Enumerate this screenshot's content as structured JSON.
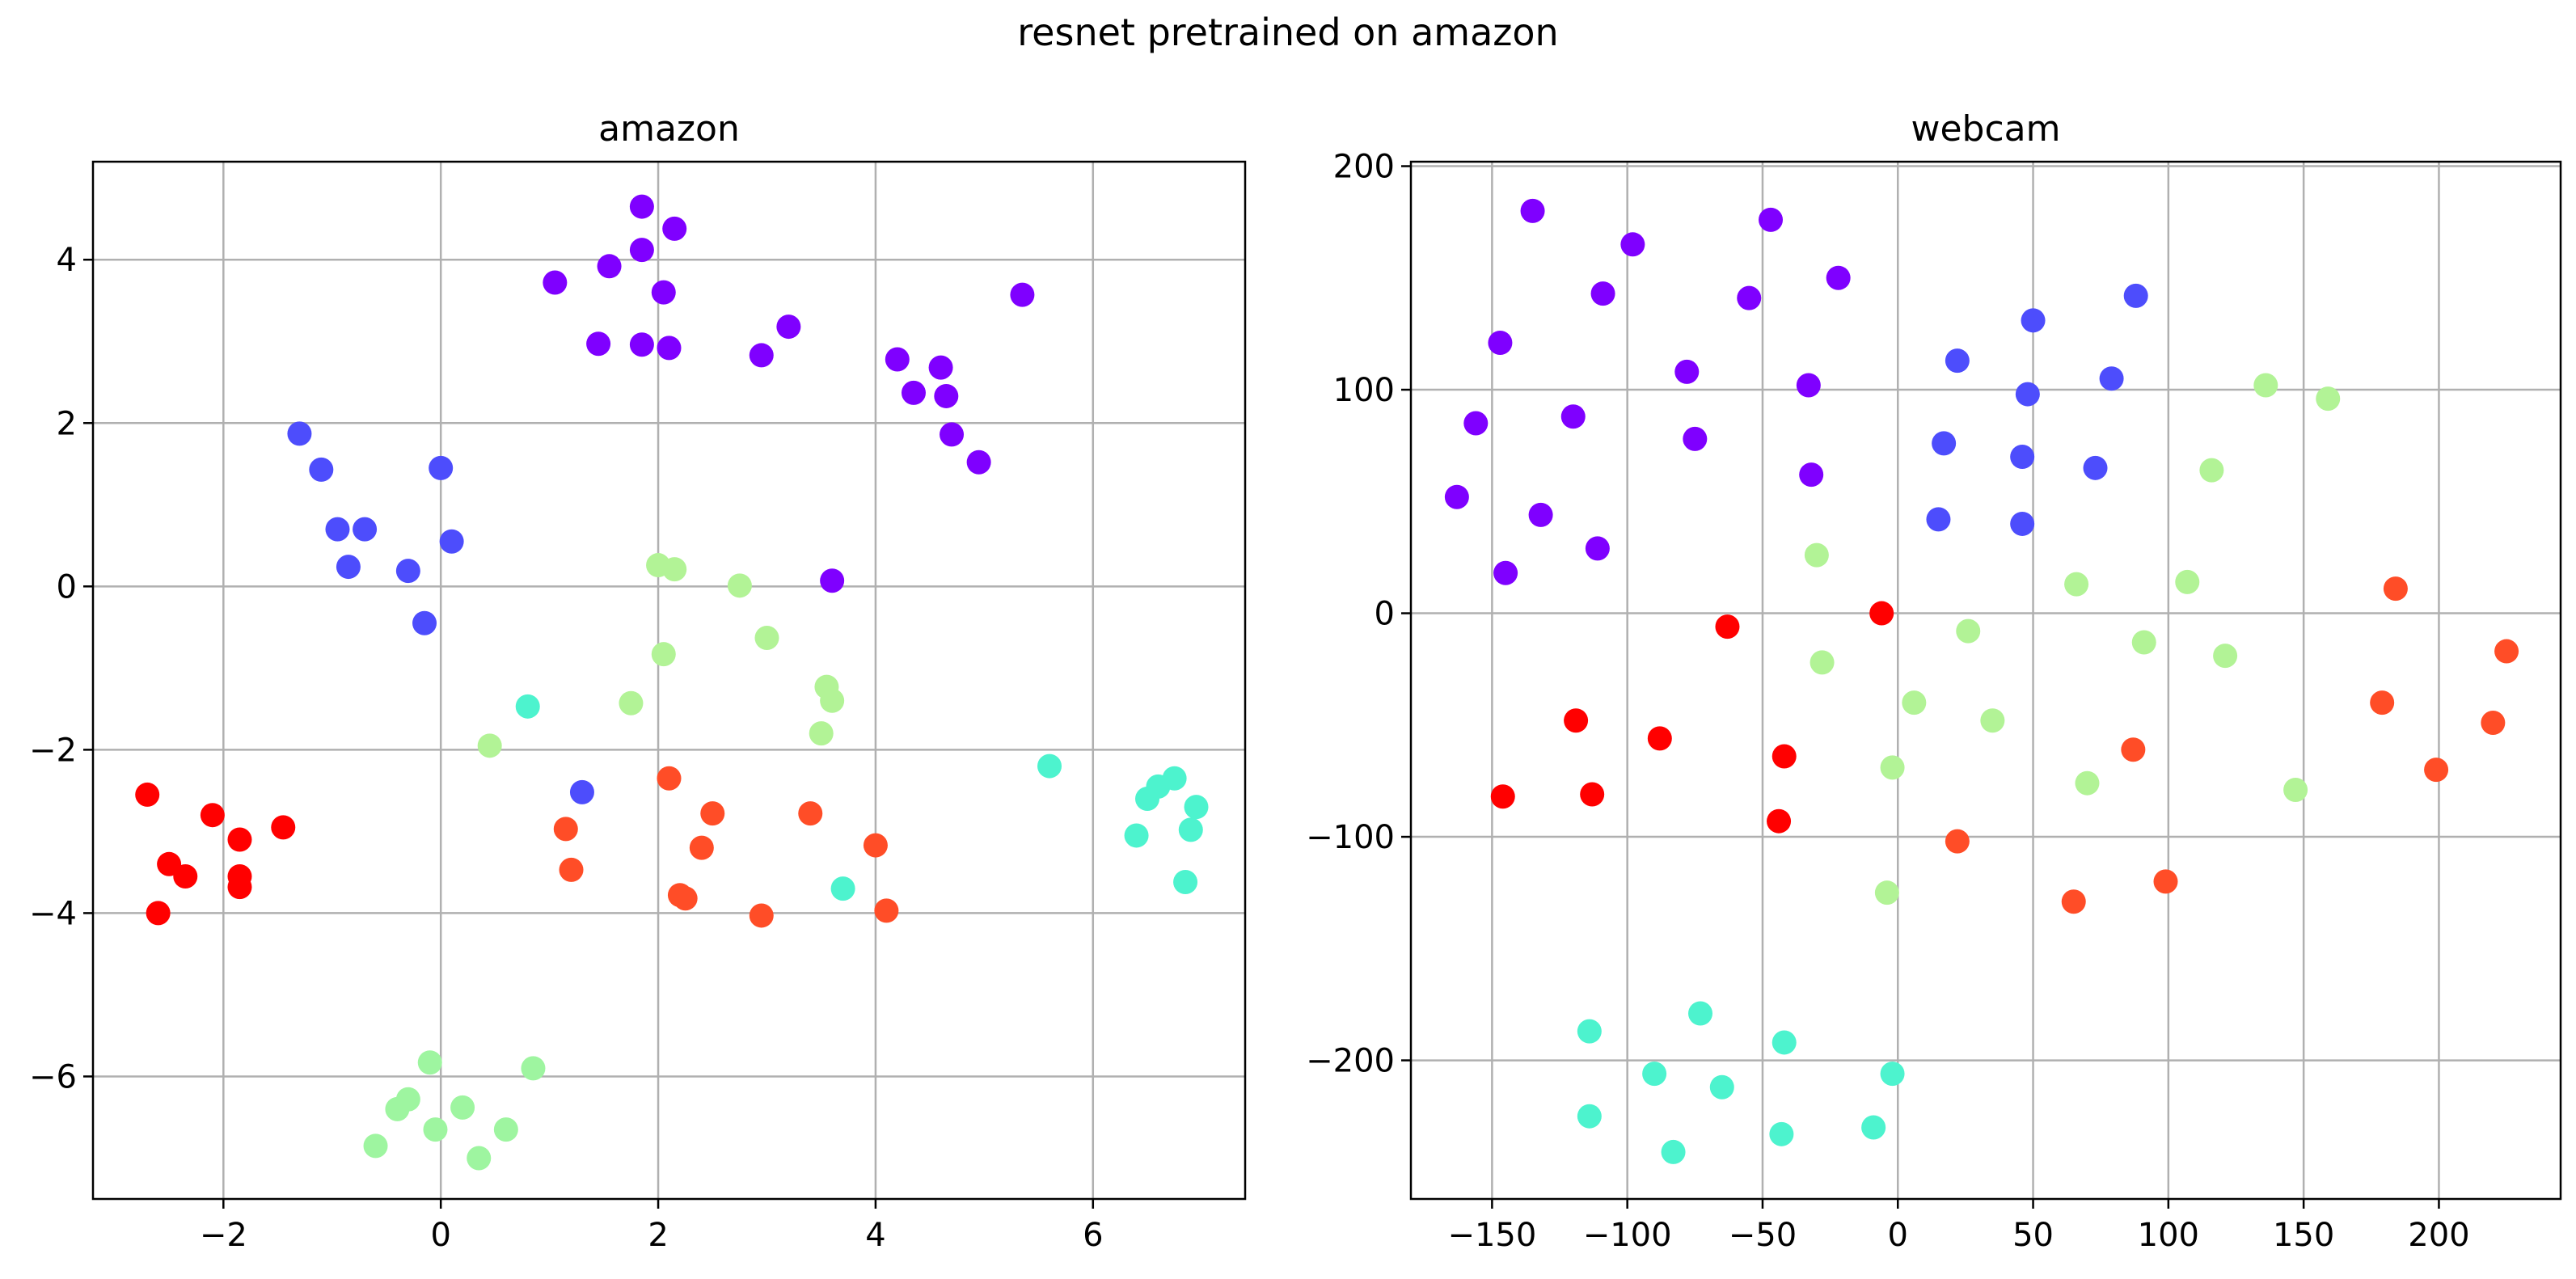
{
  "figure": {
    "title": "resnet pretrained on amazon"
  },
  "colors": {
    "violet": "#7f00ff",
    "blue": "#4d4dfc",
    "cyan": "#4df3ce",
    "lightgreen": "#b2f396",
    "salmon": "#ff4d27",
    "red": "#ff0000",
    "grid": "#b0b0b0"
  },
  "chart_data": [
    {
      "type": "scatter",
      "title": "amazon",
      "xlabel": "",
      "ylabel": "",
      "xlim": [
        -3.2,
        7.4
      ],
      "ylim": [
        -7.5,
        5.2
      ],
      "xticks": [
        -2,
        0,
        2,
        4,
        6
      ],
      "yticks": [
        -6,
        -4,
        -2,
        0,
        2,
        4
      ],
      "xtick_labels": [
        "−2",
        "0",
        "2",
        "4",
        "6"
      ],
      "ytick_labels": [
        "−6",
        "−4",
        "−2",
        "0",
        "2",
        "4"
      ],
      "grid": true,
      "series": [
        {
          "name": "class-violet",
          "color": "#7f00ff",
          "points": [
            [
              1.05,
              3.72
            ],
            [
              1.55,
              3.92
            ],
            [
              1.85,
              4.65
            ],
            [
              2.15,
              4.38
            ],
            [
              1.85,
              4.12
            ],
            [
              2.05,
              3.6
            ],
            [
              1.45,
              2.97
            ],
            [
              1.85,
              2.96
            ],
            [
              2.1,
              2.92
            ],
            [
              2.95,
              2.83
            ],
            [
              3.2,
              3.18
            ],
            [
              4.2,
              2.78
            ],
            [
              4.6,
              2.68
            ],
            [
              4.35,
              2.37
            ],
            [
              4.65,
              2.33
            ],
            [
              4.7,
              1.86
            ],
            [
              4.95,
              1.52
            ],
            [
              5.35,
              3.57
            ],
            [
              3.6,
              0.07
            ]
          ]
        },
        {
          "name": "class-blue",
          "color": "#4d4dfc",
          "points": [
            [
              -1.3,
              1.87
            ],
            [
              -1.1,
              1.43
            ],
            [
              -0.95,
              0.7
            ],
            [
              -0.7,
              0.7
            ],
            [
              -0.85,
              0.24
            ],
            [
              0.0,
              1.45
            ],
            [
              0.1,
              0.55
            ],
            [
              -0.3,
              0.19
            ],
            [
              -0.15,
              -0.45
            ],
            [
              1.3,
              -2.52
            ]
          ]
        },
        {
          "name": "class-cyan",
          "color": "#4df3ce",
          "points": [
            [
              0.8,
              -1.47
            ],
            [
              5.6,
              -2.2
            ],
            [
              6.5,
              -2.6
            ],
            [
              6.6,
              -2.45
            ],
            [
              6.75,
              -2.35
            ],
            [
              6.95,
              -2.7
            ],
            [
              6.4,
              -3.05
            ],
            [
              6.9,
              -2.98
            ],
            [
              6.85,
              -3.62
            ],
            [
              3.7,
              -3.7
            ]
          ]
        },
        {
          "name": "class-lightgreen",
          "color": "#b2f396",
          "points": [
            [
              2.0,
              0.26
            ],
            [
              2.15,
              0.21
            ],
            [
              2.75,
              0.01
            ],
            [
              3.0,
              -0.63
            ],
            [
              2.05,
              -0.83
            ],
            [
              3.55,
              -1.23
            ],
            [
              3.6,
              -1.4
            ],
            [
              1.75,
              -1.43
            ],
            [
              3.5,
              -1.8
            ],
            [
              0.45,
              -1.95
            ]
          ]
        },
        {
          "name": "class-paleGreen",
          "color": "#9ef5a0",
          "points": [
            [
              -0.1,
              -5.83
            ],
            [
              0.85,
              -5.9
            ],
            [
              -0.3,
              -6.28
            ],
            [
              -0.4,
              -6.4
            ],
            [
              0.2,
              -6.38
            ],
            [
              -0.05,
              -6.65
            ],
            [
              0.6,
              -6.65
            ],
            [
              -0.6,
              -6.85
            ],
            [
              0.35,
              -7.0
            ]
          ]
        },
        {
          "name": "class-salmon",
          "color": "#ff4d27",
          "points": [
            [
              2.1,
              -2.35
            ],
            [
              2.5,
              -2.78
            ],
            [
              3.4,
              -2.78
            ],
            [
              1.15,
              -2.97
            ],
            [
              2.4,
              -3.2
            ],
            [
              1.2,
              -3.47
            ],
            [
              2.2,
              -3.78
            ],
            [
              2.25,
              -3.82
            ],
            [
              2.95,
              -4.03
            ],
            [
              4.0,
              -3.17
            ],
            [
              4.1,
              -3.97
            ]
          ]
        },
        {
          "name": "class-red",
          "color": "#ff0000",
          "points": [
            [
              -2.7,
              -2.55
            ],
            [
              -2.1,
              -2.8
            ],
            [
              -1.85,
              -3.1
            ],
            [
              -1.45,
              -2.95
            ],
            [
              -2.5,
              -3.4
            ],
            [
              -2.35,
              -3.55
            ],
            [
              -1.85,
              -3.55
            ],
            [
              -1.85,
              -3.68
            ],
            [
              -2.6,
              -4.0
            ]
          ]
        }
      ]
    },
    {
      "type": "scatter",
      "title": "webcam",
      "xlabel": "",
      "ylabel": "",
      "xlim": [
        -180,
        245
      ],
      "ylim": [
        -262,
        202
      ],
      "xticks": [
        -150,
        -100,
        -50,
        0,
        50,
        100,
        150,
        200
      ],
      "yticks": [
        -200,
        -100,
        0,
        100,
        200
      ],
      "xtick_labels": [
        "−150",
        "−100",
        "−50",
        "0",
        "50",
        "100",
        "150",
        "200"
      ],
      "ytick_labels": [
        "−200",
        "−100",
        "0",
        "100",
        "200"
      ],
      "grid": true,
      "series": [
        {
          "name": "class-violet",
          "color": "#7f00ff",
          "points": [
            [
              -135,
              180
            ],
            [
              -47,
              176
            ],
            [
              -98,
              165
            ],
            [
              -22,
              150
            ],
            [
              -109,
              143
            ],
            [
              -55,
              141
            ],
            [
              -147,
              121
            ],
            [
              -78,
              108
            ],
            [
              -33,
              102
            ],
            [
              -120,
              88
            ],
            [
              -156,
              85
            ],
            [
              -75,
              78
            ],
            [
              -32,
              62
            ],
            [
              -163,
              52
            ],
            [
              -132,
              44
            ],
            [
              -111,
              29
            ],
            [
              -145,
              18
            ]
          ]
        },
        {
          "name": "class-blue",
          "color": "#4d4dfc",
          "points": [
            [
              88,
              142
            ],
            [
              50,
              131
            ],
            [
              22,
              113
            ],
            [
              79,
              105
            ],
            [
              48,
              98
            ],
            [
              17,
              76
            ],
            [
              46,
              70
            ],
            [
              73,
              65
            ],
            [
              15,
              42
            ],
            [
              46,
              40
            ]
          ]
        },
        {
          "name": "class-lightgreen",
          "color": "#b2f396",
          "points": [
            [
              136,
              102
            ],
            [
              159,
              96
            ],
            [
              116,
              64
            ],
            [
              -30,
              26
            ],
            [
              66,
              13
            ],
            [
              107,
              14
            ],
            [
              26,
              -8
            ],
            [
              91,
              -13
            ],
            [
              -28,
              -22
            ],
            [
              121,
              -19
            ],
            [
              6,
              -40
            ],
            [
              35,
              -48
            ],
            [
              -2,
              -69
            ],
            [
              70,
              -76
            ],
            [
              147,
              -79
            ],
            [
              -4,
              -125
            ]
          ]
        },
        {
          "name": "class-cyan",
          "color": "#4df3ce",
          "points": [
            [
              -73,
              -179
            ],
            [
              -114,
              -187
            ],
            [
              -42,
              -192
            ],
            [
              -90,
              -206
            ],
            [
              -2,
              -206
            ],
            [
              -65,
              -212
            ],
            [
              -114,
              -225
            ],
            [
              -9,
              -230
            ],
            [
              -43,
              -233
            ],
            [
              -83,
              -241
            ]
          ]
        },
        {
          "name": "class-salmon",
          "color": "#ff4d27",
          "points": [
            [
              184,
              11
            ],
            [
              225,
              -17
            ],
            [
              179,
              -40
            ],
            [
              220,
              -49
            ],
            [
              199,
              -70
            ],
            [
              87,
              -61
            ],
            [
              22,
              -102
            ],
            [
              65,
              -129
            ],
            [
              99,
              -120
            ]
          ]
        },
        {
          "name": "class-red",
          "color": "#ff0000",
          "points": [
            [
              -63,
              -6
            ],
            [
              -6,
              0
            ],
            [
              -119,
              -48
            ],
            [
              -88,
              -56
            ],
            [
              -42,
              -64
            ],
            [
              -146,
              -82
            ],
            [
              -113,
              -81
            ],
            [
              -44,
              -93
            ]
          ]
        }
      ]
    }
  ]
}
